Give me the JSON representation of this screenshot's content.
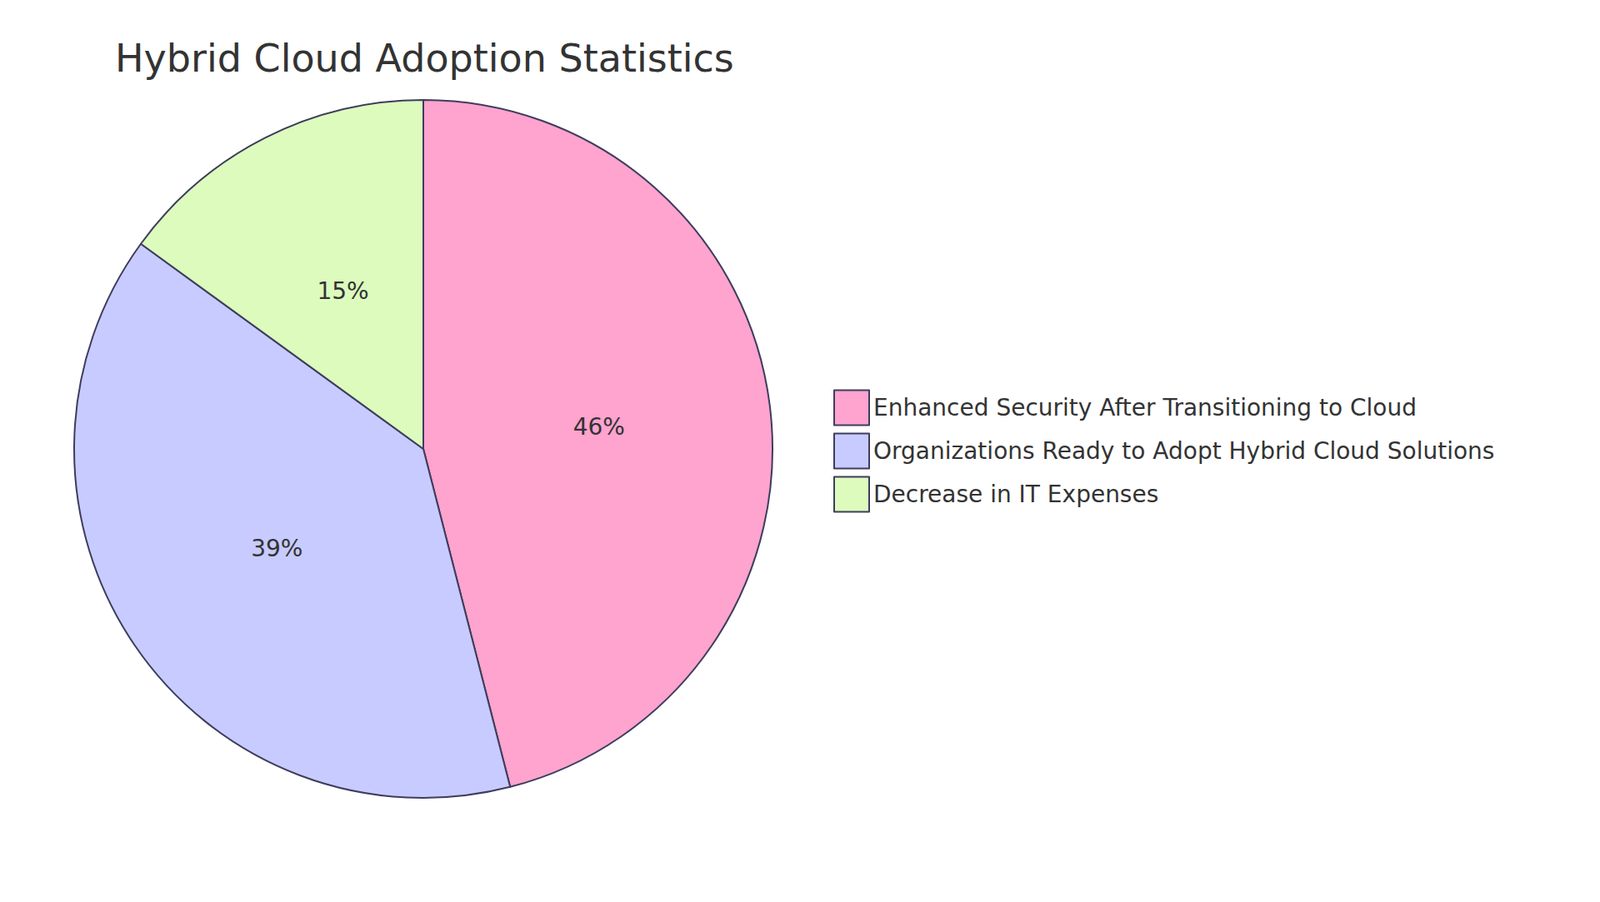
{
  "chart_data": {
    "type": "pie",
    "title": "Hybrid Cloud Adoption Statistics",
    "categories": [
      "Enhanced Security After Transitioning to Cloud",
      "Organizations Ready to Adopt Hybrid Cloud Solutions",
      "Decrease in IT Expenses"
    ],
    "values": [
      46,
      39,
      15
    ],
    "value_labels": [
      "46%",
      "39%",
      "15%"
    ],
    "colors": [
      "#ffa3cf",
      "#c8cbff",
      "#dcfbbd"
    ],
    "data_labels": true,
    "legend": "right"
  }
}
